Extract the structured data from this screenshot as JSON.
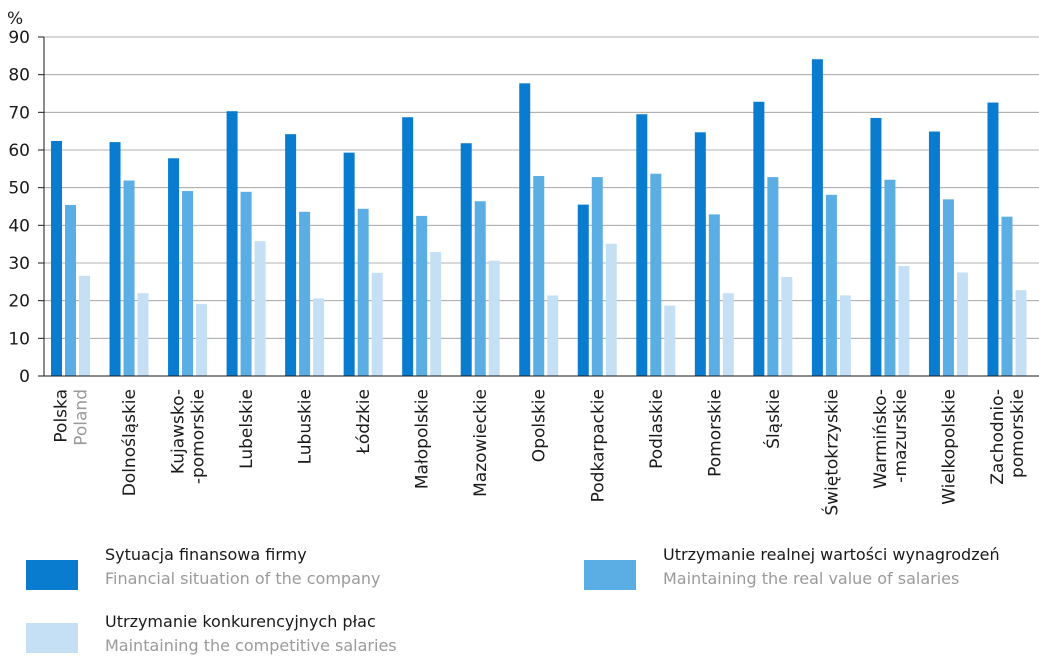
{
  "chart_data": {
    "type": "bar",
    "ylabel": "%",
    "ylim": [
      0,
      90
    ],
    "yticks": [
      0,
      10,
      20,
      30,
      40,
      50,
      60,
      70,
      80,
      90
    ],
    "grid": true,
    "legend_position": "bottom",
    "categories": [
      {
        "lines": [
          "Polska",
          "Poland"
        ]
      },
      {
        "lines": [
          "Dolnośląskie"
        ]
      },
      {
        "lines": [
          "Kujawsko-",
          "-pomorskie"
        ]
      },
      {
        "lines": [
          "Lubelskie"
        ]
      },
      {
        "lines": [
          "Lubuskie"
        ]
      },
      {
        "lines": [
          "Łódzkie"
        ]
      },
      {
        "lines": [
          "Małopolskie"
        ]
      },
      {
        "lines": [
          "Mazowieckie"
        ]
      },
      {
        "lines": [
          "Opolskie"
        ]
      },
      {
        "lines": [
          "Podkarpackie"
        ]
      },
      {
        "lines": [
          "Podlaskie"
        ]
      },
      {
        "lines": [
          "Pomorskie"
        ]
      },
      {
        "lines": [
          "Śląskie"
        ]
      },
      {
        "lines": [
          "Świętokrzyskie"
        ]
      },
      {
        "lines": [
          "Warmińsko-",
          "-mazurskie"
        ]
      },
      {
        "lines": [
          "Wielkopolskie"
        ]
      },
      {
        "lines": [
          "Zachodnio-",
          "pomorskie"
        ]
      }
    ],
    "series": [
      {
        "name": "Sytuacja finansowa firmy",
        "name_en": "Financial situation of the company",
        "color": "#0a7ccf",
        "values": [
          62.4,
          62.1,
          57.8,
          70.3,
          64.2,
          59.3,
          68.7,
          61.8,
          77.7,
          45.5,
          69.5,
          64.7,
          72.8,
          84.1,
          68.5,
          64.9,
          72.6
        ]
      },
      {
        "name": "Utrzymanie realnej wartości wynagrodzeń",
        "name_en": "Maintaining the real value of salaries",
        "color": "#5aaee3",
        "values": [
          45.4,
          51.9,
          49.1,
          48.9,
          43.6,
          44.4,
          42.5,
          46.4,
          53.1,
          52.8,
          53.7,
          42.9,
          52.8,
          48.1,
          52.1,
          46.9,
          42.3
        ]
      },
      {
        "name": "Utrzymanie konkurencyjnych płac",
        "name_en": "Maintaining the competitive salaries",
        "color": "#c5e0f5",
        "values": [
          26.6,
          22.0,
          19.1,
          35.8,
          20.6,
          27.4,
          32.9,
          30.6,
          21.4,
          35.1,
          18.7,
          22.0,
          26.3,
          21.4,
          29.2,
          27.5,
          22.8
        ]
      }
    ]
  }
}
